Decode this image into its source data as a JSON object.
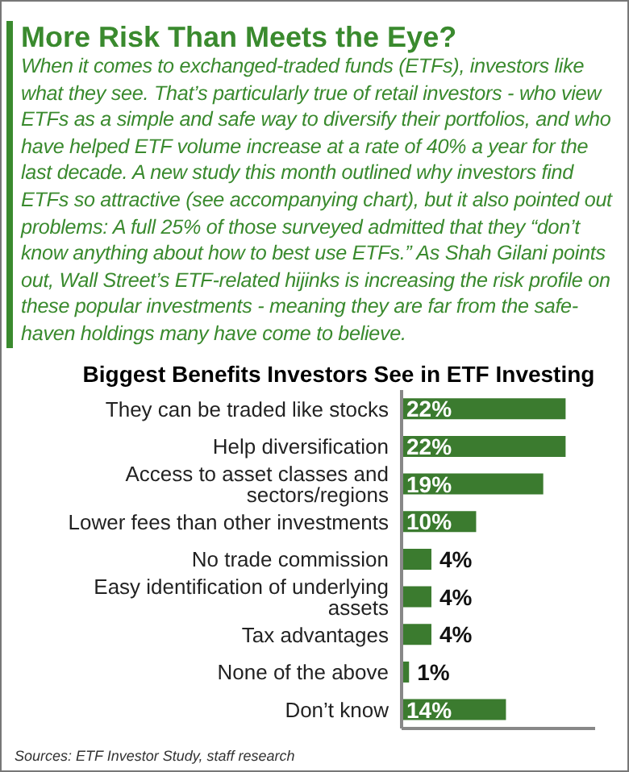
{
  "chart_data": {
    "type": "bar",
    "orientation": "horizontal",
    "title": "More Risk Than Meets the Eye?",
    "subtitle": "When it comes to exchanged-traded funds (ETFs), investors like what they see. That’s particularly true of retail investors - who view ETFs as a simple and safe way to diversify their portfolios, and who have helped ETF volume increase at a rate of 40% a year for the last decade. A new study this month outlined why investors find ETFs so attractive (see accompanying chart), but it also pointed out problems: A full 25% of those surveyed admitted that they “don’t know anything about how to best use ETFs.” As Shah Gilani points out, Wall Street’s ETF-related hijinks is increasing the risk profile on these popular investments - meaning they are far from the safe-haven holdings many have come to believe.",
    "annotations": [
      "Biggest Benefits Investors See in ETF Investing",
      "Sources: ETF Investor Study, staff research"
    ],
    "categories": [
      "They can be traded like stocks",
      "Help diversification",
      "Access to asset classes and sectors/regions",
      "Lower fees than other investments",
      "No trade commission",
      "Easy identification of underlying assets",
      "Tax advantages",
      "None of the above",
      "Don’t know"
    ],
    "values": [
      22,
      22,
      19,
      10,
      4,
      4,
      4,
      1,
      14
    ],
    "value_labels": [
      "22%",
      "22%",
      "19%",
      "10%",
      "4%",
      "4%",
      "4%",
      "1%",
      "14%"
    ],
    "color": "#3b7b2f"
  }
}
